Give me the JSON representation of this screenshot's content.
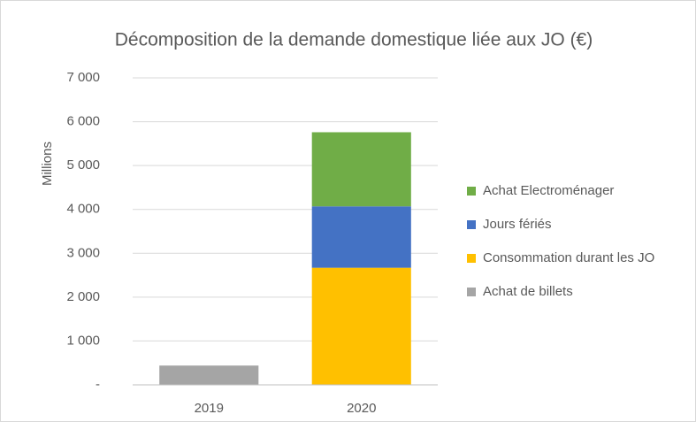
{
  "chart_data": {
    "type": "stacked_bar",
    "title": "Décomposition de la demande domestique liée aux JO (€)",
    "y_label": "Millions",
    "categories": [
      "2019",
      "2020"
    ],
    "series": [
      {
        "name": "Achat de billets",
        "color": "#a5a5a5",
        "values": [
          440,
          null
        ]
      },
      {
        "name": "Consommation durant les JO",
        "color": "#ffc000",
        "values": [
          null,
          2670
        ]
      },
      {
        "name": "Jours fériés",
        "color": "#4472c4",
        "values": [
          null,
          1400
        ]
      },
      {
        "name": "Achat Electroménager",
        "color": "#70ad47",
        "values": [
          null,
          1690
        ]
      }
    ],
    "ylim": [
      0,
      7000
    ],
    "yticks": [
      {
        "value": 0,
        "label": "-"
      },
      {
        "value": 1000,
        "label": "1 000"
      },
      {
        "value": 2000,
        "label": "2 000"
      },
      {
        "value": 3000,
        "label": "3 000"
      },
      {
        "value": 4000,
        "label": "4 000"
      },
      {
        "value": 5000,
        "label": "5 000"
      },
      {
        "value": 6000,
        "label": "6 000"
      },
      {
        "value": 7000,
        "label": "7 000"
      }
    ],
    "grid": true,
    "legend": "right"
  }
}
